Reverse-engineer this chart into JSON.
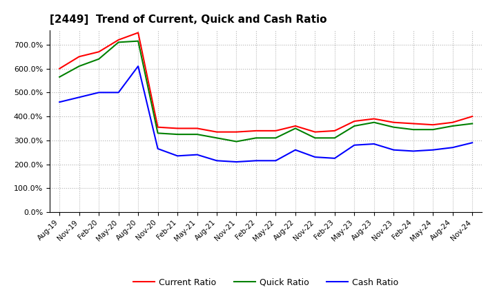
{
  "title": "[2449]  Trend of Current, Quick and Cash Ratio",
  "labels": [
    "Aug-19",
    "Nov-19",
    "Feb-20",
    "May-20",
    "Aug-20",
    "Nov-20",
    "Feb-21",
    "May-21",
    "Aug-21",
    "Nov-21",
    "Feb-22",
    "May-22",
    "Aug-22",
    "Nov-22",
    "Feb-23",
    "May-23",
    "Aug-23",
    "Nov-23",
    "Feb-24",
    "May-24",
    "Aug-24",
    "Nov-24"
  ],
  "current_ratio": [
    600,
    650,
    670,
    720,
    750,
    355,
    350,
    350,
    335,
    335,
    340,
    340,
    360,
    335,
    340,
    380,
    390,
    375,
    370,
    365,
    375,
    400
  ],
  "quick_ratio": [
    565,
    610,
    640,
    710,
    715,
    330,
    325,
    325,
    310,
    295,
    310,
    310,
    350,
    310,
    310,
    360,
    375,
    355,
    345,
    345,
    360,
    370
  ],
  "cash_ratio": [
    460,
    480,
    500,
    500,
    610,
    265,
    235,
    240,
    215,
    210,
    215,
    215,
    260,
    230,
    225,
    280,
    285,
    260,
    255,
    260,
    270,
    290
  ],
  "current_color": "#ff0000",
  "quick_color": "#008000",
  "cash_color": "#0000ff",
  "ylim": [
    0,
    760
  ],
  "yticks": [
    0,
    100,
    200,
    300,
    400,
    500,
    600,
    700
  ],
  "background_color": "#ffffff",
  "grid_color": "#b0b0b0"
}
